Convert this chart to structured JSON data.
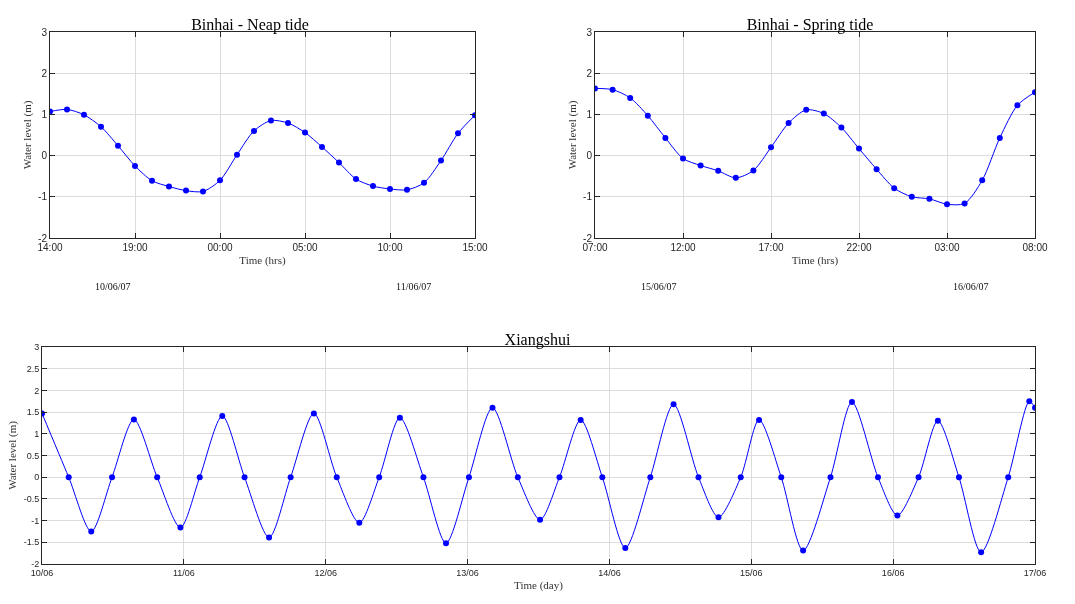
{
  "chart_data": [
    {
      "type": "line",
      "title": "Binhai - Neap tide",
      "xlabel": "Time (hrs)",
      "ylabel": "Water level (m)",
      "annotations": [
        "10/06/07",
        "11/06/07"
      ],
      "x": [
        "--06-10T14:00",
        "--06-10T15:00",
        "--06-10T16:00",
        "--06-10T17:00",
        "--06-10T18:00",
        "--06-10T19:00",
        "--06-10T20:00",
        "--06-10T21:00",
        "--06-10T22:00",
        "--06-10T23:00",
        "--06-11T00:00",
        "--06-11T01:00",
        "--06-11T02:00",
        "--06-11T03:00",
        "--06-11T04:00",
        "--06-11T05:00",
        "--06-11T06:00",
        "--06-11T07:00",
        "--06-11T08:00",
        "--06-11T09:00",
        "--06-11T10:00",
        "--06-11T11:00",
        "--06-11T12:00",
        "--06-11T13:00",
        "--06-11T14:00",
        "--06-11T15:00"
      ],
      "series": [
        {
          "color": "#0000ff",
          "values": [
            1.07,
            1.12,
            0.99,
            0.7,
            0.24,
            -0.25,
            -0.61,
            -0.75,
            -0.85,
            -0.87,
            -0.6,
            0.02,
            0.6,
            0.85,
            0.79,
            0.56,
            0.21,
            -0.17,
            -0.57,
            -0.74,
            -0.81,
            -0.83,
            -0.66,
            -0.12,
            0.54,
            0.98
          ]
        }
      ],
      "xlim": [
        "--06-10T14:00",
        "--06-11T15:00"
      ],
      "xticks": [
        {
          "value": "--06-10T14:00",
          "label": "14:00"
        },
        {
          "value": "--06-10T19:00",
          "label": "19:00"
        },
        {
          "value": "--06-11T00:00",
          "label": "00:00"
        },
        {
          "value": "--06-11T05:00",
          "label": "05:00"
        },
        {
          "value": "--06-11T10:00",
          "label": "10:00"
        },
        {
          "value": "--06-11T15:00",
          "label": "15:00"
        }
      ],
      "ylim": [
        -2,
        3
      ],
      "yticks": [
        -2,
        -1,
        0,
        1,
        2,
        3
      ],
      "grid": true,
      "marker": "circle",
      "line_style": "solid"
    },
    {
      "type": "line",
      "title": "Binhai - Spring tide",
      "xlabel": "Time (hrs)",
      "ylabel": "Water level (m)",
      "annotations": [
        "15/06/07",
        "16/06/07"
      ],
      "x": [
        "--06-15T07:00",
        "--06-15T08:00",
        "--06-15T09:00",
        "--06-15T10:00",
        "--06-15T11:00",
        "--06-15T12:00",
        "--06-15T13:00",
        "--06-15T14:00",
        "--06-15T15:00",
        "--06-15T16:00",
        "--06-15T17:00",
        "--06-15T18:00",
        "--06-15T19:00",
        "--06-15T20:00",
        "--06-15T21:00",
        "--06-15T22:00",
        "--06-15T23:00",
        "--06-16T00:00",
        "--06-16T01:00",
        "--06-16T02:00",
        "--06-16T03:00",
        "--06-16T04:00",
        "--06-16T05:00",
        "--06-16T06:00",
        "--06-16T07:00",
        "--06-16T08:00"
      ],
      "series": [
        {
          "color": "#0000ff",
          "values": [
            1.63,
            1.6,
            1.4,
            0.97,
            0.43,
            -0.07,
            -0.24,
            -0.37,
            -0.54,
            -0.36,
            0.2,
            0.79,
            1.11,
            1.02,
            0.68,
            0.17,
            -0.33,
            -0.79,
            -1.0,
            -1.05,
            -1.18,
            -1.16,
            -0.6,
            0.43,
            1.22,
            1.54
          ]
        }
      ],
      "xlim": [
        "--06-15T07:00",
        "--06-16T08:00"
      ],
      "xticks": [
        {
          "value": "--06-15T07:00",
          "label": "07:00"
        },
        {
          "value": "--06-15T12:00",
          "label": "12:00"
        },
        {
          "value": "--06-15T17:00",
          "label": "17:00"
        },
        {
          "value": "--06-15T22:00",
          "label": "22:00"
        },
        {
          "value": "--06-16T03:00",
          "label": "03:00"
        },
        {
          "value": "--06-16T08:00",
          "label": "08:00"
        }
      ],
      "ylim": [
        -2,
        3
      ],
      "yticks": [
        -2,
        -1,
        0,
        1,
        2,
        3
      ],
      "grid": true,
      "marker": "circle",
      "line_style": "solid"
    },
    {
      "type": "line",
      "title": "Xiangshui",
      "xlabel": "Time (day)",
      "ylabel": "Water level (m)",
      "x": [
        "--06-10T00:00",
        "--06-10T04:31",
        "--06-10T08:20",
        "--06-10T11:51",
        "--06-10T15:33",
        "--06-10T19:29",
        "--06-10T23:25",
        "--06-11T02:41",
        "--06-11T06:30",
        "--06-11T10:16",
        "--06-11T14:25",
        "--06-11T18:04",
        "--06-11T22:00",
        "--06-12T01:52",
        "--06-12T05:41",
        "--06-12T09:03",
        "--06-12T12:33",
        "--06-12T16:32",
        "--06-12T20:21",
        "--06-13T00:14",
        "--06-13T04:13",
        "--06-13T08:30",
        "--06-13T12:16",
        "--06-13T15:33",
        "--06-13T19:08",
        "--06-13T22:48",
        "--06-14T02:41",
        "--06-14T06:55",
        "--06-14T10:51",
        "--06-14T15:04",
        "--06-14T18:27",
        "--06-14T22:13",
        "--06-15T01:19",
        "--06-15T05:04",
        "--06-15T08:46",
        "--06-15T13:24",
        "--06-15T17:02",
        "--06-15T21:26",
        "--06-16T00:43",
        "--06-16T04:18",
        "--06-16T07:34",
        "--06-16T11:08",
        "--06-16T14:53",
        "--06-16T19:28",
        "--06-16T23:02",
        "--06-17T00:00"
      ],
      "series": [
        {
          "color": "#0000ff",
          "values": [
            1.47,
            0,
            -1.25,
            0,
            1.33,
            0,
            -1.16,
            0,
            1.41,
            0,
            -1.39,
            0,
            1.47,
            0,
            -1.05,
            0,
            1.37,
            0,
            -1.52,
            0,
            1.6,
            0,
            -0.98,
            0,
            1.32,
            0,
            -1.63,
            0,
            1.68,
            0,
            -0.92,
            0,
            1.32,
            0,
            -1.69,
            0,
            1.73,
            0,
            -0.88,
            0,
            1.3,
            0,
            -1.73,
            0,
            1.75,
            1.6
          ]
        }
      ],
      "xlim": [
        "--06-10",
        "--06-17"
      ],
      "xticks": [
        {
          "value": "--06-10",
          "label": "10/06"
        },
        {
          "value": "--06-11",
          "label": "11/06"
        },
        {
          "value": "--06-12",
          "label": "12/06"
        },
        {
          "value": "--06-13",
          "label": "13/06"
        },
        {
          "value": "--06-14",
          "label": "14/06"
        },
        {
          "value": "--06-15",
          "label": "15/06"
        },
        {
          "value": "--06-16",
          "label": "16/06"
        },
        {
          "value": "--06-17",
          "label": "17/06"
        }
      ],
      "ylim": [
        -2,
        3
      ],
      "yticks": [
        -2,
        -1.5,
        -1,
        -0.5,
        0,
        0.5,
        1,
        1.5,
        2,
        2.5,
        3
      ],
      "grid": true,
      "marker": "circle",
      "line_style": "solid"
    }
  ]
}
